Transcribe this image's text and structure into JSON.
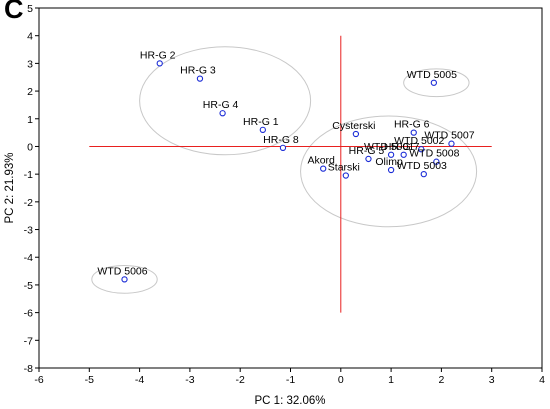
{
  "panel_label": "C",
  "chart_data": {
    "type": "scatter",
    "xlabel": "PC 1: 32.06%",
    "ylabel": "PC 2: 21.93%",
    "xlim": [
      -6,
      4
    ],
    "ylim": [
      -8,
      5
    ],
    "xticks": [
      -6,
      -5,
      -4,
      -3,
      -2,
      -1,
      0,
      1,
      2,
      3,
      4
    ],
    "yticks": [
      -8,
      -7,
      -6,
      -5,
      -4,
      -3,
      -2,
      -1,
      0,
      1,
      2,
      3,
      4,
      5
    ],
    "marker_color": "#1a2bd6",
    "crosshair_color": "#e8201f",
    "ellipse_color": "#c8c8c8",
    "points": [
      {
        "label": "HR-G 2",
        "x": -3.6,
        "y": 3.0
      },
      {
        "label": "HR-G 3",
        "x": -2.8,
        "y": 2.45
      },
      {
        "label": "HR-G 4",
        "x": -2.35,
        "y": 1.2
      },
      {
        "label": "HR-G 1",
        "x": -1.55,
        "y": 0.6
      },
      {
        "label": "HR-G 8",
        "x": -1.15,
        "y": -0.05
      },
      {
        "label": "WTD 5005",
        "x": 1.85,
        "y": 2.3
      },
      {
        "label": "WTD 5006",
        "x": -4.3,
        "y": -4.8
      },
      {
        "label": "Cysterski",
        "x": 0.3,
        "y": 0.45
      },
      {
        "label": "HR-G 6",
        "x": 1.45,
        "y": 0.5
      },
      {
        "label": "WTD 5007",
        "x": 2.2,
        "y": 0.1
      },
      {
        "label": "WTD 5002",
        "x": 1.6,
        "y": -0.1
      },
      {
        "label": "HR-G 7",
        "x": 1.25,
        "y": -0.3
      },
      {
        "label": "WTD 5001",
        "x": 1.0,
        "y": -0.3
      },
      {
        "label": "HR-G 5",
        "x": 0.55,
        "y": -0.45
      },
      {
        "label": "WTD 5008",
        "x": 1.9,
        "y": -0.55
      },
      {
        "label": "Olimp",
        "x": 1.0,
        "y": -0.85
      },
      {
        "label": "Akord",
        "x": -0.35,
        "y": -0.8
      },
      {
        "label": "Starski",
        "x": 0.1,
        "y": -1.05
      },
      {
        "label": "WTD 5003",
        "x": 1.65,
        "y": -1.0
      }
    ],
    "crosshair": {
      "x_range": [
        -5,
        3
      ],
      "y_at": 0,
      "y_range": [
        -6,
        4
      ],
      "x_at": 0
    },
    "ellipses": [
      {
        "cx": -2.3,
        "cy": 1.65,
        "rx": 1.7,
        "ry": 1.95
      },
      {
        "cx": 0.95,
        "cy": -0.9,
        "rx": 1.75,
        "ry": 2.0
      },
      {
        "cx": 1.9,
        "cy": 2.3,
        "rx": 0.65,
        "ry": 0.5
      },
      {
        "cx": -4.3,
        "cy": -4.8,
        "rx": 0.65,
        "ry": 0.5
      }
    ]
  }
}
